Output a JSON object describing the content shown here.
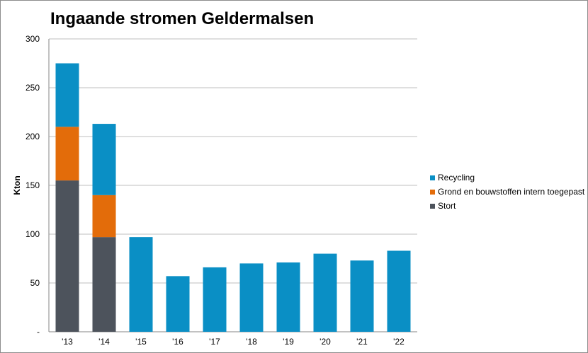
{
  "chart_data": {
    "type": "bar",
    "stacked": true,
    "title": "Ingaande stromen Geldermalsen",
    "ylabel": "Kton",
    "xlabel": "",
    "ylim": [
      0,
      300
    ],
    "yticks": [
      0,
      50,
      100,
      150,
      200,
      250,
      300
    ],
    "ytick_labels": [
      "-",
      "50",
      "100",
      "150",
      "200",
      "250",
      "300"
    ],
    "grid": true,
    "legend_position": "right",
    "categories": [
      "'13",
      "'14",
      "'15",
      "'16",
      "'17",
      "'18",
      "'19",
      "'20",
      "'21",
      "'22"
    ],
    "series": [
      {
        "name": "Stort",
        "color": "#4d535c",
        "values": [
          155,
          97,
          0,
          0,
          0,
          0,
          0,
          0,
          0,
          0
        ]
      },
      {
        "name": "Grond en bouwstoffen intern toegepast",
        "color": "#e36c0a",
        "values": [
          55,
          43,
          0,
          0,
          0,
          0,
          0,
          0,
          0,
          0
        ]
      },
      {
        "name": "Recycling",
        "color": "#0a8fc5",
        "values": [
          65,
          73,
          97,
          57,
          66,
          70,
          71,
          80,
          73,
          83
        ]
      }
    ],
    "legend_order": [
      "Recycling",
      "Grond en bouwstoffen intern toegepast",
      "Stort"
    ]
  }
}
